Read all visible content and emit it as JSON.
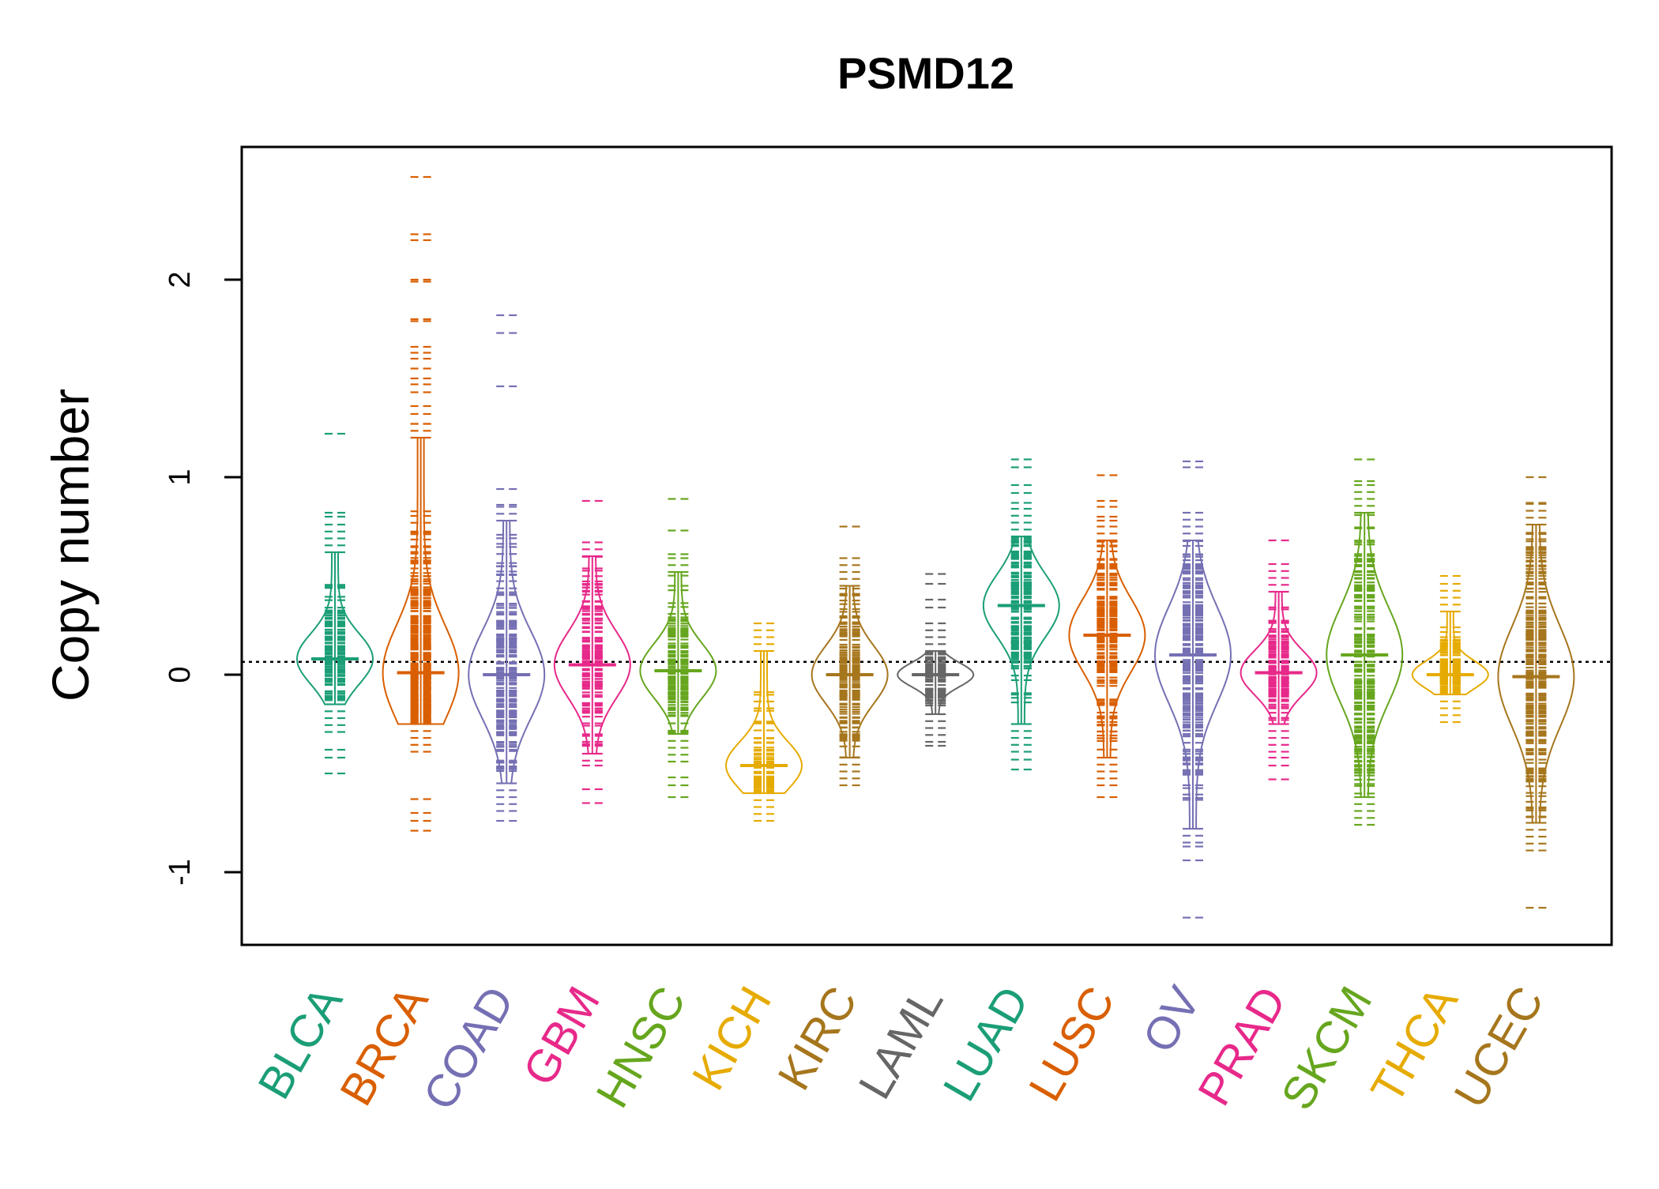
{
  "chart_data": {
    "type": "scatter",
    "style": "beanplot",
    "title": "PSMD12",
    "xlabel": "",
    "ylabel": "Copy number",
    "ylim": [
      -1.37,
      2.68
    ],
    "yticks": [
      -1,
      0,
      1,
      2
    ],
    "ytick_labels": [
      "-1",
      "0",
      "1",
      "2"
    ],
    "reference_line": 0.065,
    "grid": false,
    "legend": "none",
    "categories": [
      "BLCA",
      "BRCA",
      "COAD",
      "GBM",
      "HNSC",
      "KICH",
      "KIRC",
      "LAML",
      "LUAD",
      "LUSC",
      "OV",
      "PRAD",
      "SKCM",
      "THCA",
      "UCEC"
    ],
    "colors": [
      "#1b9e77",
      "#d95f02",
      "#7570b3",
      "#e7298a",
      "#66a61e",
      "#e6ab02",
      "#a6761d",
      "#666666",
      "#1b9e77",
      "#d95f02",
      "#7570b3",
      "#e7298a",
      "#66a61e",
      "#e6ab02",
      "#a6761d"
    ],
    "series": [
      {
        "category": "BLCA",
        "min": -0.5,
        "max": 1.22,
        "q1": -0.15,
        "q3": 0.62,
        "mode": 0.08,
        "outliers": [
          1.22,
          0.82,
          0.8,
          -0.5,
          -0.42,
          -0.38
        ],
        "n": 90
      },
      {
        "category": "BRCA",
        "min": -0.8,
        "max": 2.52,
        "q1": -0.25,
        "q3": 1.2,
        "mode": 0.01,
        "outliers": [
          2.52,
          2.23,
          2.2,
          2.0,
          1.99,
          1.8,
          1.79,
          1.66,
          1.63,
          1.6,
          1.55,
          1.5,
          1.47,
          1.43,
          1.36,
          1.32,
          1.27,
          -0.63,
          -0.7,
          -0.74,
          -0.79
        ],
        "n": 300
      },
      {
        "category": "COAD",
        "min": -0.74,
        "max": 1.82,
        "q1": -0.55,
        "q3": 0.78,
        "mode": 0.0,
        "outliers": [
          1.82,
          1.73,
          1.46,
          0.94,
          0.86,
          -0.74
        ],
        "n": 150
      },
      {
        "category": "GBM",
        "min": -0.65,
        "max": 0.88,
        "q1": -0.4,
        "q3": 0.6,
        "mode": 0.05,
        "outliers": [
          0.88,
          0.67,
          -0.46,
          -0.58,
          -0.65
        ],
        "n": 110
      },
      {
        "category": "HNSC",
        "min": -0.62,
        "max": 0.89,
        "q1": -0.3,
        "q3": 0.52,
        "mode": 0.02,
        "outliers": [
          0.89,
          0.73,
          0.61,
          -0.52,
          -0.56,
          -0.62
        ],
        "n": 110
      },
      {
        "category": "KICH",
        "min": -0.68,
        "max": 0.15,
        "q1": -0.6,
        "q3": 0.12,
        "mode": -0.46,
        "outliers": [],
        "n": 60
      },
      {
        "category": "KIRC",
        "min": -0.5,
        "max": 0.75,
        "q1": -0.42,
        "q3": 0.45,
        "mode": 0.0,
        "outliers": [
          0.75
        ],
        "n": 120
      },
      {
        "category": "LAML",
        "min": -0.36,
        "max": 0.51,
        "q1": -0.2,
        "q3": 0.12,
        "mode": 0.0,
        "outliers": [
          0.51,
          0.46,
          0.38,
          0.34,
          -0.36
        ],
        "n": 70
      },
      {
        "category": "LUAD",
        "min": -0.48,
        "max": 1.09,
        "q1": -0.25,
        "q3": 0.7,
        "mode": 0.35,
        "outliers": [
          1.09,
          1.05,
          0.96,
          0.92,
          0.87,
          -0.43,
          -0.48
        ],
        "n": 150
      },
      {
        "category": "LUSC",
        "min": -0.62,
        "max": 1.01,
        "q1": -0.42,
        "q3": 0.68,
        "mode": 0.2,
        "outliers": [
          1.01,
          0.88,
          0.85,
          0.8,
          0.78,
          -0.62
        ],
        "n": 150
      },
      {
        "category": "OV",
        "min": -1.23,
        "max": 1.08,
        "q1": -0.78,
        "q3": 0.68,
        "mode": 0.1,
        "outliers": [
          1.08,
          1.05,
          -0.87,
          -0.94,
          -1.23
        ],
        "n": 180
      },
      {
        "category": "PRAD",
        "min": -0.53,
        "max": 0.68,
        "q1": -0.25,
        "q3": 0.42,
        "mode": 0.01,
        "outliers": [
          0.68,
          -0.42,
          -0.46,
          -0.53
        ],
        "n": 110
      },
      {
        "category": "SKCM",
        "min": -0.7,
        "max": 1.09,
        "q1": -0.62,
        "q3": 0.82,
        "mode": 0.1,
        "outliers": [
          1.09,
          0.98,
          0.96
        ],
        "n": 180
      },
      {
        "category": "THCA",
        "min": -0.2,
        "max": 0.5,
        "q1": -0.1,
        "q3": 0.32,
        "mode": 0.0,
        "outliers": [
          0.5,
          0.46
        ],
        "n": 90
      },
      {
        "category": "UCEC",
        "min": -1.18,
        "max": 1.0,
        "q1": -0.75,
        "q3": 0.76,
        "mode": -0.01,
        "outliers": [
          1.0,
          0.87,
          -0.89,
          -1.18
        ],
        "n": 200
      }
    ]
  }
}
